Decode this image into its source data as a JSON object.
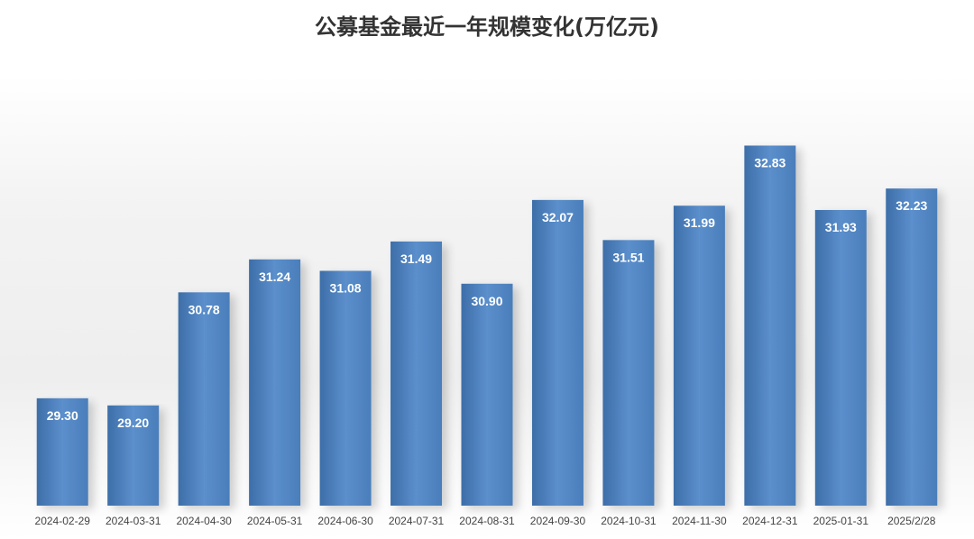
{
  "chart_data": {
    "type": "bar",
    "title": "公募基金最近一年规模变化(万亿元)",
    "xlabel": "",
    "ylabel": "",
    "categories": [
      "2024-02-29",
      "2024-03-31",
      "2024-04-30",
      "2024-05-31",
      "2024-06-30",
      "2024-07-31",
      "2024-08-31",
      "2024-09-30",
      "2024-10-31",
      "2024-11-30",
      "2024-12-31",
      "2025-01-31",
      "2025/2/28"
    ],
    "values": [
      29.3,
      29.2,
      30.78,
      31.24,
      31.08,
      31.49,
      30.9,
      32.07,
      31.51,
      31.99,
      32.83,
      31.93,
      32.23
    ],
    "data_labels": [
      "29.30",
      "29.20",
      "30.78",
      "31.24",
      "31.08",
      "31.49",
      "30.90",
      "32.07",
      "31.51",
      "31.99",
      "32.83",
      "31.93",
      "32.23"
    ],
    "ylim": [
      27.8,
      33.0
    ],
    "grid": false,
    "legend": "none",
    "bar_color": "#4a7ebb",
    "bar_color_light": "#5b8fcc",
    "bar_color_dark": "#3d6ea8"
  }
}
